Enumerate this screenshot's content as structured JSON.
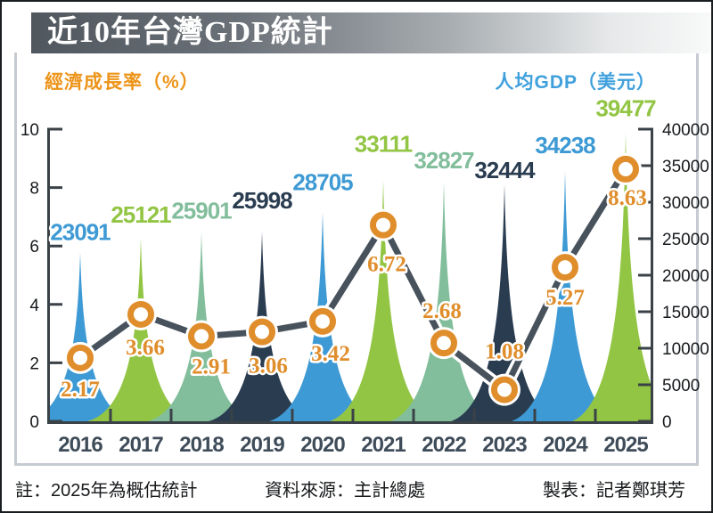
{
  "title": "近10年台灣GDP統計",
  "axis_titles": {
    "left": "經濟成長率（%）",
    "right": "人均GDP（美元）"
  },
  "footer": {
    "note": "註：2025年為概估統計",
    "source": "資料來源：主計總處",
    "credit": "製表：記者鄭琪芳"
  },
  "colors": {
    "growth_accent": "#E08D2B",
    "left_axis_title": "#ED9419",
    "right_axis_title": "#3FA0DC",
    "line": "#47525C",
    "axis": "#3A4248",
    "tick_text": "#16191C",
    "year_label": "#3F4C59",
    "banner_text": "#FFFFFF",
    "peak_cycle": [
      "#3E9AD4",
      "#92C544",
      "#82BE9C",
      "#2A3C50"
    ]
  },
  "chart_data": {
    "type": "combo",
    "categories": [
      "2016",
      "2017",
      "2018",
      "2019",
      "2020",
      "2021",
      "2022",
      "2023",
      "2024",
      "2025"
    ],
    "series": [
      {
        "name": "人均GDP（美元）",
        "type": "area-peak",
        "axis": "right",
        "values": [
          23091,
          25121,
          25901,
          25998,
          28705,
          33111,
          32827,
          32444,
          34238,
          39477
        ]
      },
      {
        "name": "經濟成長率（%）",
        "type": "line",
        "axis": "left",
        "values": [
          2.17,
          3.66,
          2.91,
          3.06,
          3.42,
          6.72,
          2.68,
          1.08,
          5.27,
          8.63
        ]
      }
    ],
    "left_axis": {
      "range": [
        0,
        10
      ],
      "ticks": [
        0,
        2,
        4,
        6,
        8,
        10
      ]
    },
    "right_axis": {
      "range": [
        0,
        40000
      ],
      "ticks": [
        0,
        5000,
        10000,
        15000,
        20000,
        25000,
        30000,
        35000,
        40000
      ]
    },
    "grid": false,
    "growth_label_position": [
      "below",
      "below",
      "below",
      "below",
      "below",
      "below",
      "above",
      "above",
      "below",
      "below"
    ],
    "legend_position": "top"
  }
}
